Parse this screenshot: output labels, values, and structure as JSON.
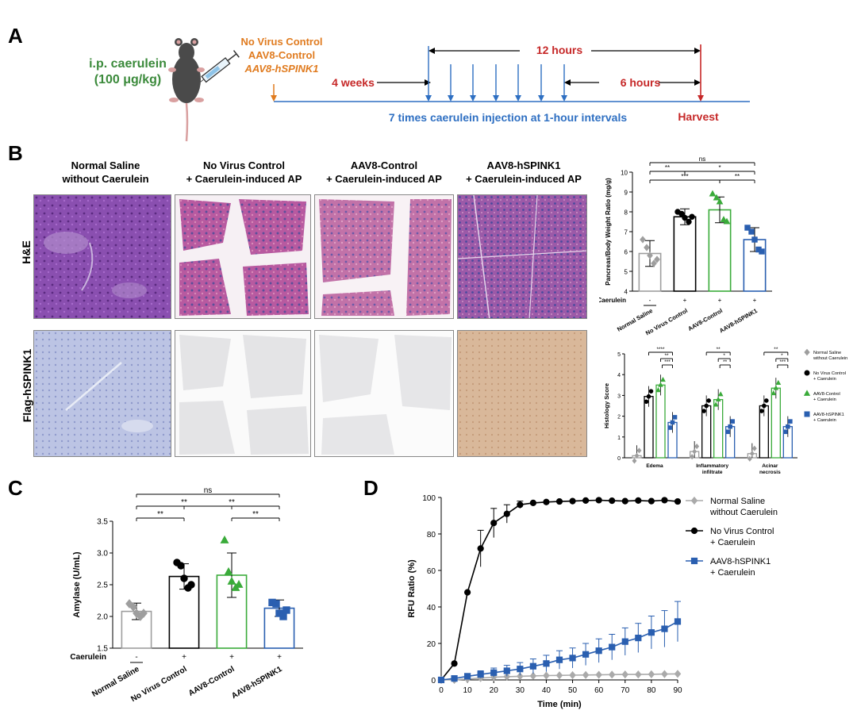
{
  "panels": {
    "a": "A",
    "b": "B",
    "c": "C",
    "d": "D"
  },
  "panelA": {
    "injection": "i.p. caerulein",
    "dose": "(100 μg/kg)",
    "groups": [
      "No Virus Control",
      "AAV8-Control",
      "AAV8-hSPINK1"
    ],
    "weeks": "4 weeks",
    "hours12": "12 hours",
    "hours6": "6 hours",
    "injection_note": "7 times caerulein injection at 1-hour intervals",
    "harvest": "Harvest",
    "colors": {
      "orange": "#e07b1f",
      "green": "#3b8a3b",
      "red": "#c62828",
      "blue": "#2e6fc2"
    }
  },
  "panelB": {
    "columns": [
      {
        "line1": "Normal Saline",
        "line2": "without Caerulein"
      },
      {
        "line1": "No Virus Control",
        "line2": "+ Caerulein-induced AP"
      },
      {
        "line1": "AAV8-Control",
        "line2": "+ Caerulein-induced AP"
      },
      {
        "line1": "AAV8-hSPINK1",
        "line2": "+ Caerulein-induced AP"
      }
    ],
    "rows": [
      "H&E",
      "Flag-hSPINK1"
    ]
  },
  "chart_data": [
    {
      "id": "B-weight",
      "type": "bar",
      "ylabel": "Pancreas/Body Weight Ratio (mg/g)",
      "ylim": [
        4,
        10
      ],
      "yticks": [
        4,
        5,
        6,
        7,
        8,
        9,
        10
      ],
      "categories": [
        "Normal Saline",
        "No Virus Control",
        "AAV8-Control",
        "AAV8-hSPINK1"
      ],
      "caerulein_label": "Caerulein",
      "caerulein": [
        "-",
        "+",
        "+",
        "+"
      ],
      "values": [
        5.9,
        7.75,
        8.1,
        6.6
      ],
      "errors": [
        0.65,
        0.4,
        0.65,
        0.6
      ],
      "points": [
        [
          6.6,
          6.2,
          5.8,
          5.4,
          5.6
        ],
        [
          8.0,
          7.9,
          7.7,
          7.5,
          7.75
        ],
        [
          8.9,
          8.7,
          8.5,
          7.6,
          7.5
        ],
        [
          7.2,
          7.0,
          6.6,
          6.1,
          6.0
        ]
      ],
      "colors": [
        "#9e9e9e",
        "#000000",
        "#3aab3a",
        "#2a5fb0"
      ],
      "significance": [
        "ns",
        "**",
        "*",
        "***",
        "**"
      ]
    },
    {
      "id": "B-histology",
      "type": "bar",
      "ylabel": "Histology Score",
      "ylim": [
        0,
        5
      ],
      "yticks": [
        0,
        1,
        2,
        3,
        4,
        5
      ],
      "categories": [
        "Edema",
        "Inflammatory infiltrate",
        "Acinar necrosis"
      ],
      "category_lines": [
        [
          "Edema"
        ],
        [
          "Inflammatory",
          "infiltrate"
        ],
        [
          "Acinar",
          "necrosis"
        ]
      ],
      "series": [
        {
          "name": "Normal Saline without Caerulein",
          "line1": "Normal Saline",
          "line2": "without Caerulein",
          "values": [
            0.1,
            0.3,
            0.2
          ],
          "color": "#9e9e9e",
          "marker": "diamond"
        },
        {
          "name": "No Virus Control + Caerulein",
          "line1": "No Virus Control",
          "line2": "+ Caerulein",
          "values": [
            2.95,
            2.5,
            2.5
          ],
          "color": "#000000",
          "marker": "circle"
        },
        {
          "name": "AAV8-Control + Caerulein",
          "line1": "AAV8-Control",
          "line2": "+ Caerulein",
          "values": [
            3.5,
            2.8,
            3.35
          ],
          "color": "#3aab3a",
          "marker": "triangle"
        },
        {
          "name": "AAV8-hSPINK1 + Caerulein",
          "line1": "AAV8-hSPINK1",
          "line2": "+ Caerulein",
          "values": [
            1.7,
            1.5,
            1.5
          ],
          "color": "#2a5fb0",
          "marker": "square"
        }
      ],
      "significance": [
        [
          "****",
          "**",
          "***"
        ],
        [
          "**",
          "*",
          "**"
        ],
        [
          "**",
          "*",
          "***"
        ]
      ]
    },
    {
      "id": "C-amylase",
      "type": "bar",
      "ylabel": "Amylase (U/mL)",
      "ylim": [
        1.5,
        3.5
      ],
      "yticks": [
        1.5,
        2.0,
        2.5,
        3.0,
        3.5
      ],
      "categories": [
        "Normal Saline",
        "No Virus Control",
        "AAV8-Control",
        "AAV8-hSPINK1"
      ],
      "caerulein_label": "Caerulein",
      "caerulein": [
        "-",
        "+",
        "+",
        "+"
      ],
      "values": [
        2.08,
        2.63,
        2.65,
        2.13
      ],
      "errors": [
        0.13,
        0.2,
        0.35,
        0.13
      ],
      "points": [
        [
          2.2,
          2.15,
          2.05,
          2.0,
          2.05
        ],
        [
          2.85,
          2.8,
          2.6,
          2.45,
          2.5
        ],
        [
          3.2,
          2.7,
          2.55,
          2.45,
          2.5
        ],
        [
          2.22,
          2.2,
          2.05,
          2.0,
          2.1
        ]
      ],
      "colors": [
        "#9e9e9e",
        "#000000",
        "#3aab3a",
        "#2a5fb0"
      ],
      "significance": [
        "ns",
        "**",
        "**",
        "**",
        "**"
      ]
    },
    {
      "id": "D-rfu",
      "type": "line",
      "xlabel": "Time (min)",
      "ylabel": "RFU Ratio (%)",
      "xlim": [
        0,
        90
      ],
      "ylim": [
        0,
        100
      ],
      "xticks": [
        0,
        10,
        20,
        30,
        40,
        50,
        60,
        70,
        80,
        90
      ],
      "yticks": [
        0,
        20,
        40,
        60,
        80,
        100
      ],
      "x": [
        0,
        5,
        10,
        15,
        20,
        25,
        30,
        35,
        40,
        45,
        50,
        55,
        60,
        65,
        70,
        75,
        80,
        85,
        90
      ],
      "series": [
        {
          "name": "Normal Saline without Caerulein",
          "line1": "Normal Saline",
          "line2": "without Caerulein",
          "color": "#aaaaaa",
          "marker": "diamond",
          "values": [
            0,
            0,
            0.5,
            1,
            1.5,
            1.8,
            2,
            2.2,
            2.4,
            2.5,
            2.6,
            2.7,
            2.8,
            2.9,
            3,
            3,
            3.1,
            3.2,
            3.3
          ],
          "errors": [
            0,
            0,
            0,
            0,
            0,
            0,
            0,
            0,
            0,
            0,
            0,
            0,
            0,
            0,
            0,
            0,
            0,
            0,
            0
          ]
        },
        {
          "name": "No Virus Control + Caerulein",
          "line1": "No Virus Control",
          "line2": "+ Caerulein",
          "color": "#000000",
          "marker": "circle",
          "values": [
            0,
            9,
            48,
            72,
            86,
            91,
            96,
            97,
            97.5,
            97.8,
            98,
            98.3,
            98.5,
            98.2,
            98,
            98.3,
            98,
            98.5,
            97.8
          ],
          "errors": [
            0,
            0,
            0,
            10,
            8,
            5,
            2,
            0,
            0,
            0,
            0,
            0,
            0,
            0,
            0,
            0,
            0,
            0,
            0
          ]
        },
        {
          "name": "AAV8-hSPINK1 + Caerulein",
          "line1": "AAV8-hSPINK1",
          "line2": "+ Caerulein",
          "color": "#2a5fb0",
          "marker": "square",
          "values": [
            0,
            0.8,
            2,
            3,
            4,
            5,
            6,
            7.5,
            9,
            11,
            12,
            14,
            16,
            18,
            21,
            23,
            26,
            28,
            32
          ],
          "errors": [
            0,
            0.5,
            1.5,
            2,
            2.5,
            3,
            3.5,
            4,
            4.5,
            5,
            5.5,
            6,
            6.5,
            7,
            7.5,
            8,
            9,
            10,
            11
          ]
        }
      ]
    }
  ]
}
